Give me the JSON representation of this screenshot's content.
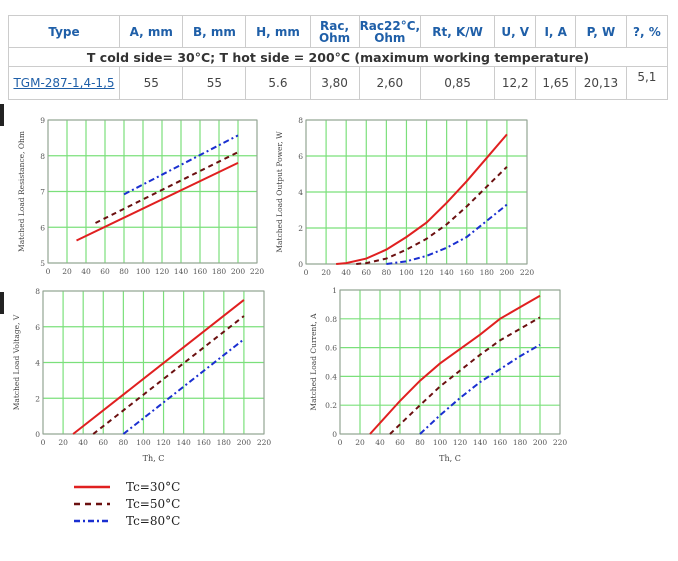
{
  "table": {
    "headers": [
      "Type",
      "A, mm",
      "B, mm",
      "H, mm",
      "Rac, Ohm",
      "Rac22°C, Ohm",
      "Rt, K/W",
      "U, V",
      "I, A",
      "P, W",
      "?, %"
    ],
    "condition": "T cold side= 30°C; T hot side = 200°C (maximum working temperature)",
    "row": [
      "TGM-287-1,4-1,5",
      "55",
      "55",
      "5.6",
      "3,80",
      "2,60",
      "0,85",
      "12,2",
      "1,65",
      "20,13",
      "5,1"
    ]
  },
  "colors": {
    "tc30": "#e02020",
    "tc50": "#6b1010",
    "tc80": "#1a2fd0",
    "grid": "#7be07b"
  },
  "legend": [
    "Tc=30°C",
    "Tc=50°C",
    "Tc=80°C"
  ],
  "chart_data": [
    {
      "type": "line",
      "title": "",
      "ylabel": "Matched Load Resistance, Ohm",
      "xlabel": "",
      "xlim": [
        0,
        220
      ],
      "ylim": [
        5,
        9
      ],
      "xticks": [
        0,
        20,
        40,
        60,
        80,
        100,
        120,
        140,
        160,
        180,
        200,
        220
      ],
      "yticks": [
        5,
        6,
        7,
        8,
        9
      ],
      "series": [
        {
          "name": "Tc=30°C",
          "x": [
            30,
            200
          ],
          "y": [
            5.63,
            7.8
          ]
        },
        {
          "name": "Tc=50°C",
          "x": [
            50,
            200
          ],
          "y": [
            6.12,
            8.1
          ]
        },
        {
          "name": "Tc=80°C",
          "x": [
            80,
            200
          ],
          "y": [
            6.92,
            8.57
          ]
        }
      ]
    },
    {
      "type": "line",
      "title": "",
      "ylabel": "Matched Load Output Power, W",
      "xlabel": "",
      "xlim": [
        0,
        220
      ],
      "ylim": [
        0,
        8
      ],
      "xticks": [
        0,
        20,
        40,
        60,
        80,
        100,
        120,
        140,
        160,
        180,
        200,
        220
      ],
      "yticks": [
        0,
        2,
        4,
        6,
        8
      ],
      "series": [
        {
          "name": "Tc=30°C",
          "x": [
            30,
            40,
            60,
            80,
            100,
            120,
            140,
            160,
            180,
            200
          ],
          "y": [
            0,
            0.05,
            0.3,
            0.8,
            1.5,
            2.3,
            3.4,
            4.6,
            5.9,
            7.2
          ]
        },
        {
          "name": "Tc=50°C",
          "x": [
            50,
            60,
            80,
            100,
            120,
            140,
            160,
            180,
            200
          ],
          "y": [
            0,
            0.05,
            0.3,
            0.8,
            1.4,
            2.2,
            3.2,
            4.3,
            5.4
          ]
        },
        {
          "name": "Tc=80°C",
          "x": [
            80,
            100,
            120,
            140,
            160,
            180,
            200
          ],
          "y": [
            0,
            0.15,
            0.45,
            0.9,
            1.5,
            2.4,
            3.3
          ]
        }
      ]
    },
    {
      "type": "line",
      "title": "",
      "ylabel": "Matched Load Voltage, V",
      "xlabel": "Th, C",
      "xlim": [
        0,
        220
      ],
      "ylim": [
        0,
        8
      ],
      "xticks": [
        0,
        20,
        40,
        60,
        80,
        100,
        120,
        140,
        160,
        180,
        200,
        220
      ],
      "yticks": [
        0,
        2,
        4,
        6,
        8
      ],
      "series": [
        {
          "name": "Tc=30°C",
          "x": [
            30,
            200
          ],
          "y": [
            0,
            7.5
          ]
        },
        {
          "name": "Tc=50°C",
          "x": [
            50,
            200
          ],
          "y": [
            0,
            6.6
          ]
        },
        {
          "name": "Tc=80°C",
          "x": [
            80,
            200
          ],
          "y": [
            0,
            5.3
          ]
        }
      ]
    },
    {
      "type": "line",
      "title": "",
      "ylabel": "Matched Load Current, A",
      "xlabel": "Th, C",
      "xlim": [
        0,
        220
      ],
      "ylim": [
        0,
        1
      ],
      "xticks": [
        0,
        20,
        40,
        60,
        80,
        100,
        120,
        140,
        160,
        180,
        200,
        220
      ],
      "yticks": [
        0,
        0.2,
        0.4,
        0.6,
        0.8,
        1
      ],
      "series": [
        {
          "name": "Tc=30°C",
          "x": [
            30,
            60,
            80,
            100,
            120,
            140,
            160,
            180,
            200
          ],
          "y": [
            0,
            0.23,
            0.37,
            0.49,
            0.59,
            0.69,
            0.8,
            0.88,
            0.96
          ]
        },
        {
          "name": "Tc=50°C",
          "x": [
            50,
            80,
            100,
            120,
            140,
            160,
            180,
            200
          ],
          "y": [
            0,
            0.2,
            0.33,
            0.44,
            0.55,
            0.65,
            0.73,
            0.81
          ]
        },
        {
          "name": "Tc=80°C",
          "x": [
            80,
            100,
            120,
            140,
            160,
            180,
            200
          ],
          "y": [
            0,
            0.13,
            0.25,
            0.36,
            0.45,
            0.54,
            0.62
          ]
        }
      ]
    }
  ]
}
